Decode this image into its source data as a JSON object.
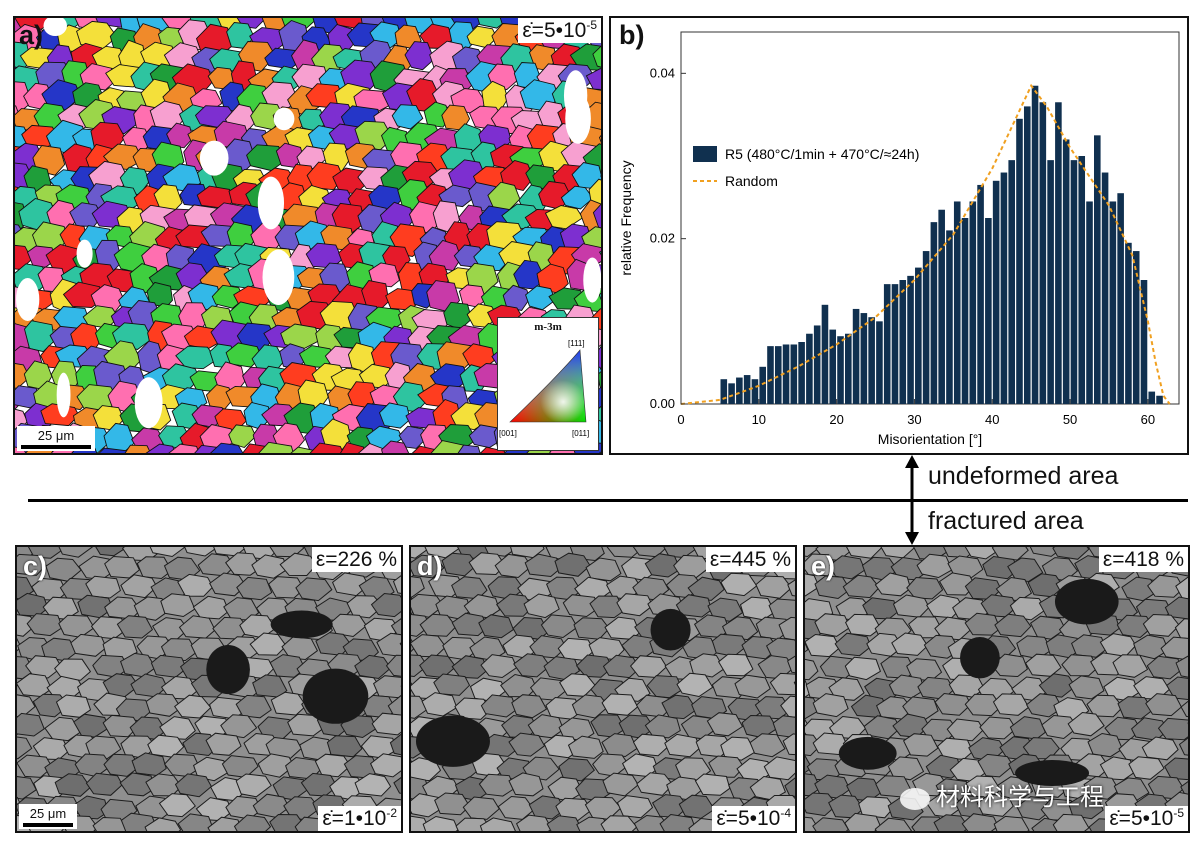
{
  "panels": {
    "a": {
      "letter": "a)",
      "strain_rate": "ε̇=5•10",
      "strain_rate_exp": "-5",
      "scalebar": "25 μm",
      "ipf": {
        "title": "m-3m",
        "corner_top": "[111]",
        "corner_left": "[001]",
        "corner_right": "[011]"
      }
    },
    "b": {
      "letter": "b)"
    },
    "c": {
      "letter": "c)",
      "strain": "ε=226 %",
      "strain_rate": "ε̇=1•10",
      "strain_rate_exp": "-2",
      "scalebar": "25 μm"
    },
    "d": {
      "letter": "d)",
      "strain": "ε=445 %",
      "strain_rate": "ε̇=5•10",
      "strain_rate_exp": "-4"
    },
    "e": {
      "letter": "e)",
      "strain": "ε=418 %",
      "strain_rate": "ε̇=5•10",
      "strain_rate_exp": "-5"
    }
  },
  "divider": {
    "top_label": "undeformed area",
    "bottom_label": "fractured area"
  },
  "watermark": "材料科学与工程",
  "chart_data": {
    "type": "bar",
    "xlabel": "Misorientation [°]",
    "ylabel": "relative Frequency",
    "xlim": [
      0,
      64
    ],
    "ylim": [
      0,
      0.045
    ],
    "xticks": [
      "0",
      "10",
      "20",
      "30",
      "40",
      "50",
      "60"
    ],
    "yticks": [
      "0.00",
      "0.02",
      "0.04"
    ],
    "bin_width": 1,
    "series": [
      {
        "name": "R5 (480°C/1min + 470°C/≈24h)",
        "color": "#10304f",
        "x": [
          5.5,
          6.5,
          7.5,
          8.5,
          9.5,
          10.5,
          11.5,
          12.5,
          13.5,
          14.5,
          15.5,
          16.5,
          17.5,
          18.5,
          19.5,
          20.5,
          21.5,
          22.5,
          23.5,
          24.5,
          25.5,
          26.5,
          27.5,
          28.5,
          29.5,
          30.5,
          31.5,
          32.5,
          33.5,
          34.5,
          35.5,
          36.5,
          37.5,
          38.5,
          39.5,
          40.5,
          41.5,
          42.5,
          43.5,
          44.5,
          45.5,
          46.5,
          47.5,
          48.5,
          49.5,
          50.5,
          51.5,
          52.5,
          53.5,
          54.5,
          55.5,
          56.5,
          57.5,
          58.5,
          59.5,
          60.5,
          61.5
        ],
        "values": [
          0.003,
          0.0025,
          0.0032,
          0.0035,
          0.003,
          0.0045,
          0.007,
          0.007,
          0.0072,
          0.0072,
          0.0075,
          0.0085,
          0.0095,
          0.012,
          0.009,
          0.0082,
          0.0085,
          0.0115,
          0.011,
          0.0105,
          0.01,
          0.0145,
          0.0145,
          0.015,
          0.0155,
          0.0165,
          0.0185,
          0.022,
          0.0235,
          0.021,
          0.0245,
          0.0225,
          0.0245,
          0.0265,
          0.0225,
          0.027,
          0.028,
          0.0295,
          0.0345,
          0.036,
          0.0385,
          0.0365,
          0.0295,
          0.0365,
          0.032,
          0.0295,
          0.03,
          0.0245,
          0.0325,
          0.028,
          0.0245,
          0.0255,
          0.0195,
          0.0185,
          0.015,
          0.0015,
          0.001
        ]
      },
      {
        "name": "Random",
        "color": "#f0a020",
        "x": [
          0,
          5,
          10,
          15,
          20,
          25,
          30,
          35,
          40,
          45,
          47,
          50,
          55,
          58,
          60,
          61,
          62,
          62.8
        ],
        "values": [
          0,
          0.0005,
          0.0022,
          0.0045,
          0.0072,
          0.0105,
          0.015,
          0.0205,
          0.0285,
          0.0385,
          0.036,
          0.031,
          0.024,
          0.018,
          0.01,
          0.005,
          0.001,
          0
        ]
      }
    ]
  },
  "colors": {
    "ipf_palette": [
      "#e61a2a",
      "#f4e03a",
      "#33b8e8",
      "#3fcf3f",
      "#2536c8",
      "#c83aa8",
      "#f08a2a",
      "#9bd64a",
      "#6a5acd",
      "#ff6fb0",
      "#2ec4a0",
      "#ff3d1f",
      "#f7a0d0",
      "#7d2fd0",
      "#1f9e3a"
    ],
    "ipf_colors": [
      "#ff0000",
      "#00cc00",
      "#0000ff"
    ],
    "sem_fill": "#8f8f8f",
    "sem_boundary": "#1d1d1d"
  }
}
